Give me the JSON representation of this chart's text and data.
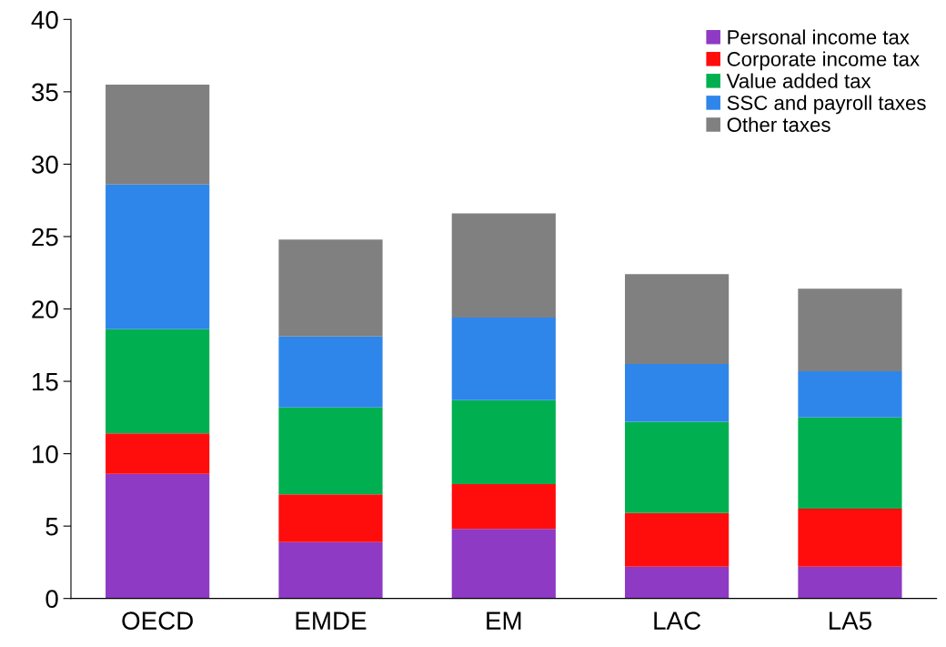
{
  "chart_data": {
    "type": "bar",
    "stacked": true,
    "categories": [
      "OECD",
      "EMDE",
      "EM",
      "LAC",
      "LA5"
    ],
    "series": [
      {
        "name": "Personal income tax",
        "color": "#8e3ac4",
        "values": [
          8.6,
          3.9,
          4.8,
          2.2,
          2.2
        ]
      },
      {
        "name": "Corporate income tax",
        "color": "#ff0d0d",
        "values": [
          2.8,
          3.3,
          3.1,
          3.7,
          4.0
        ]
      },
      {
        "name": "Value added tax",
        "color": "#00b050",
        "values": [
          7.2,
          6.0,
          5.8,
          6.3,
          6.3
        ]
      },
      {
        "name": "SSC and payroll taxes",
        "color": "#2e86eb",
        "values": [
          10.0,
          4.9,
          5.7,
          4.0,
          3.2
        ]
      },
      {
        "name": "Other taxes",
        "color": "#808080",
        "values": [
          6.9,
          6.7,
          7.2,
          6.2,
          5.7
        ]
      }
    ],
    "ylim": [
      0,
      40
    ],
    "yticks": [
      0,
      5,
      10,
      15,
      20,
      25,
      30,
      35,
      40
    ],
    "grid": false,
    "legend": "top right"
  }
}
